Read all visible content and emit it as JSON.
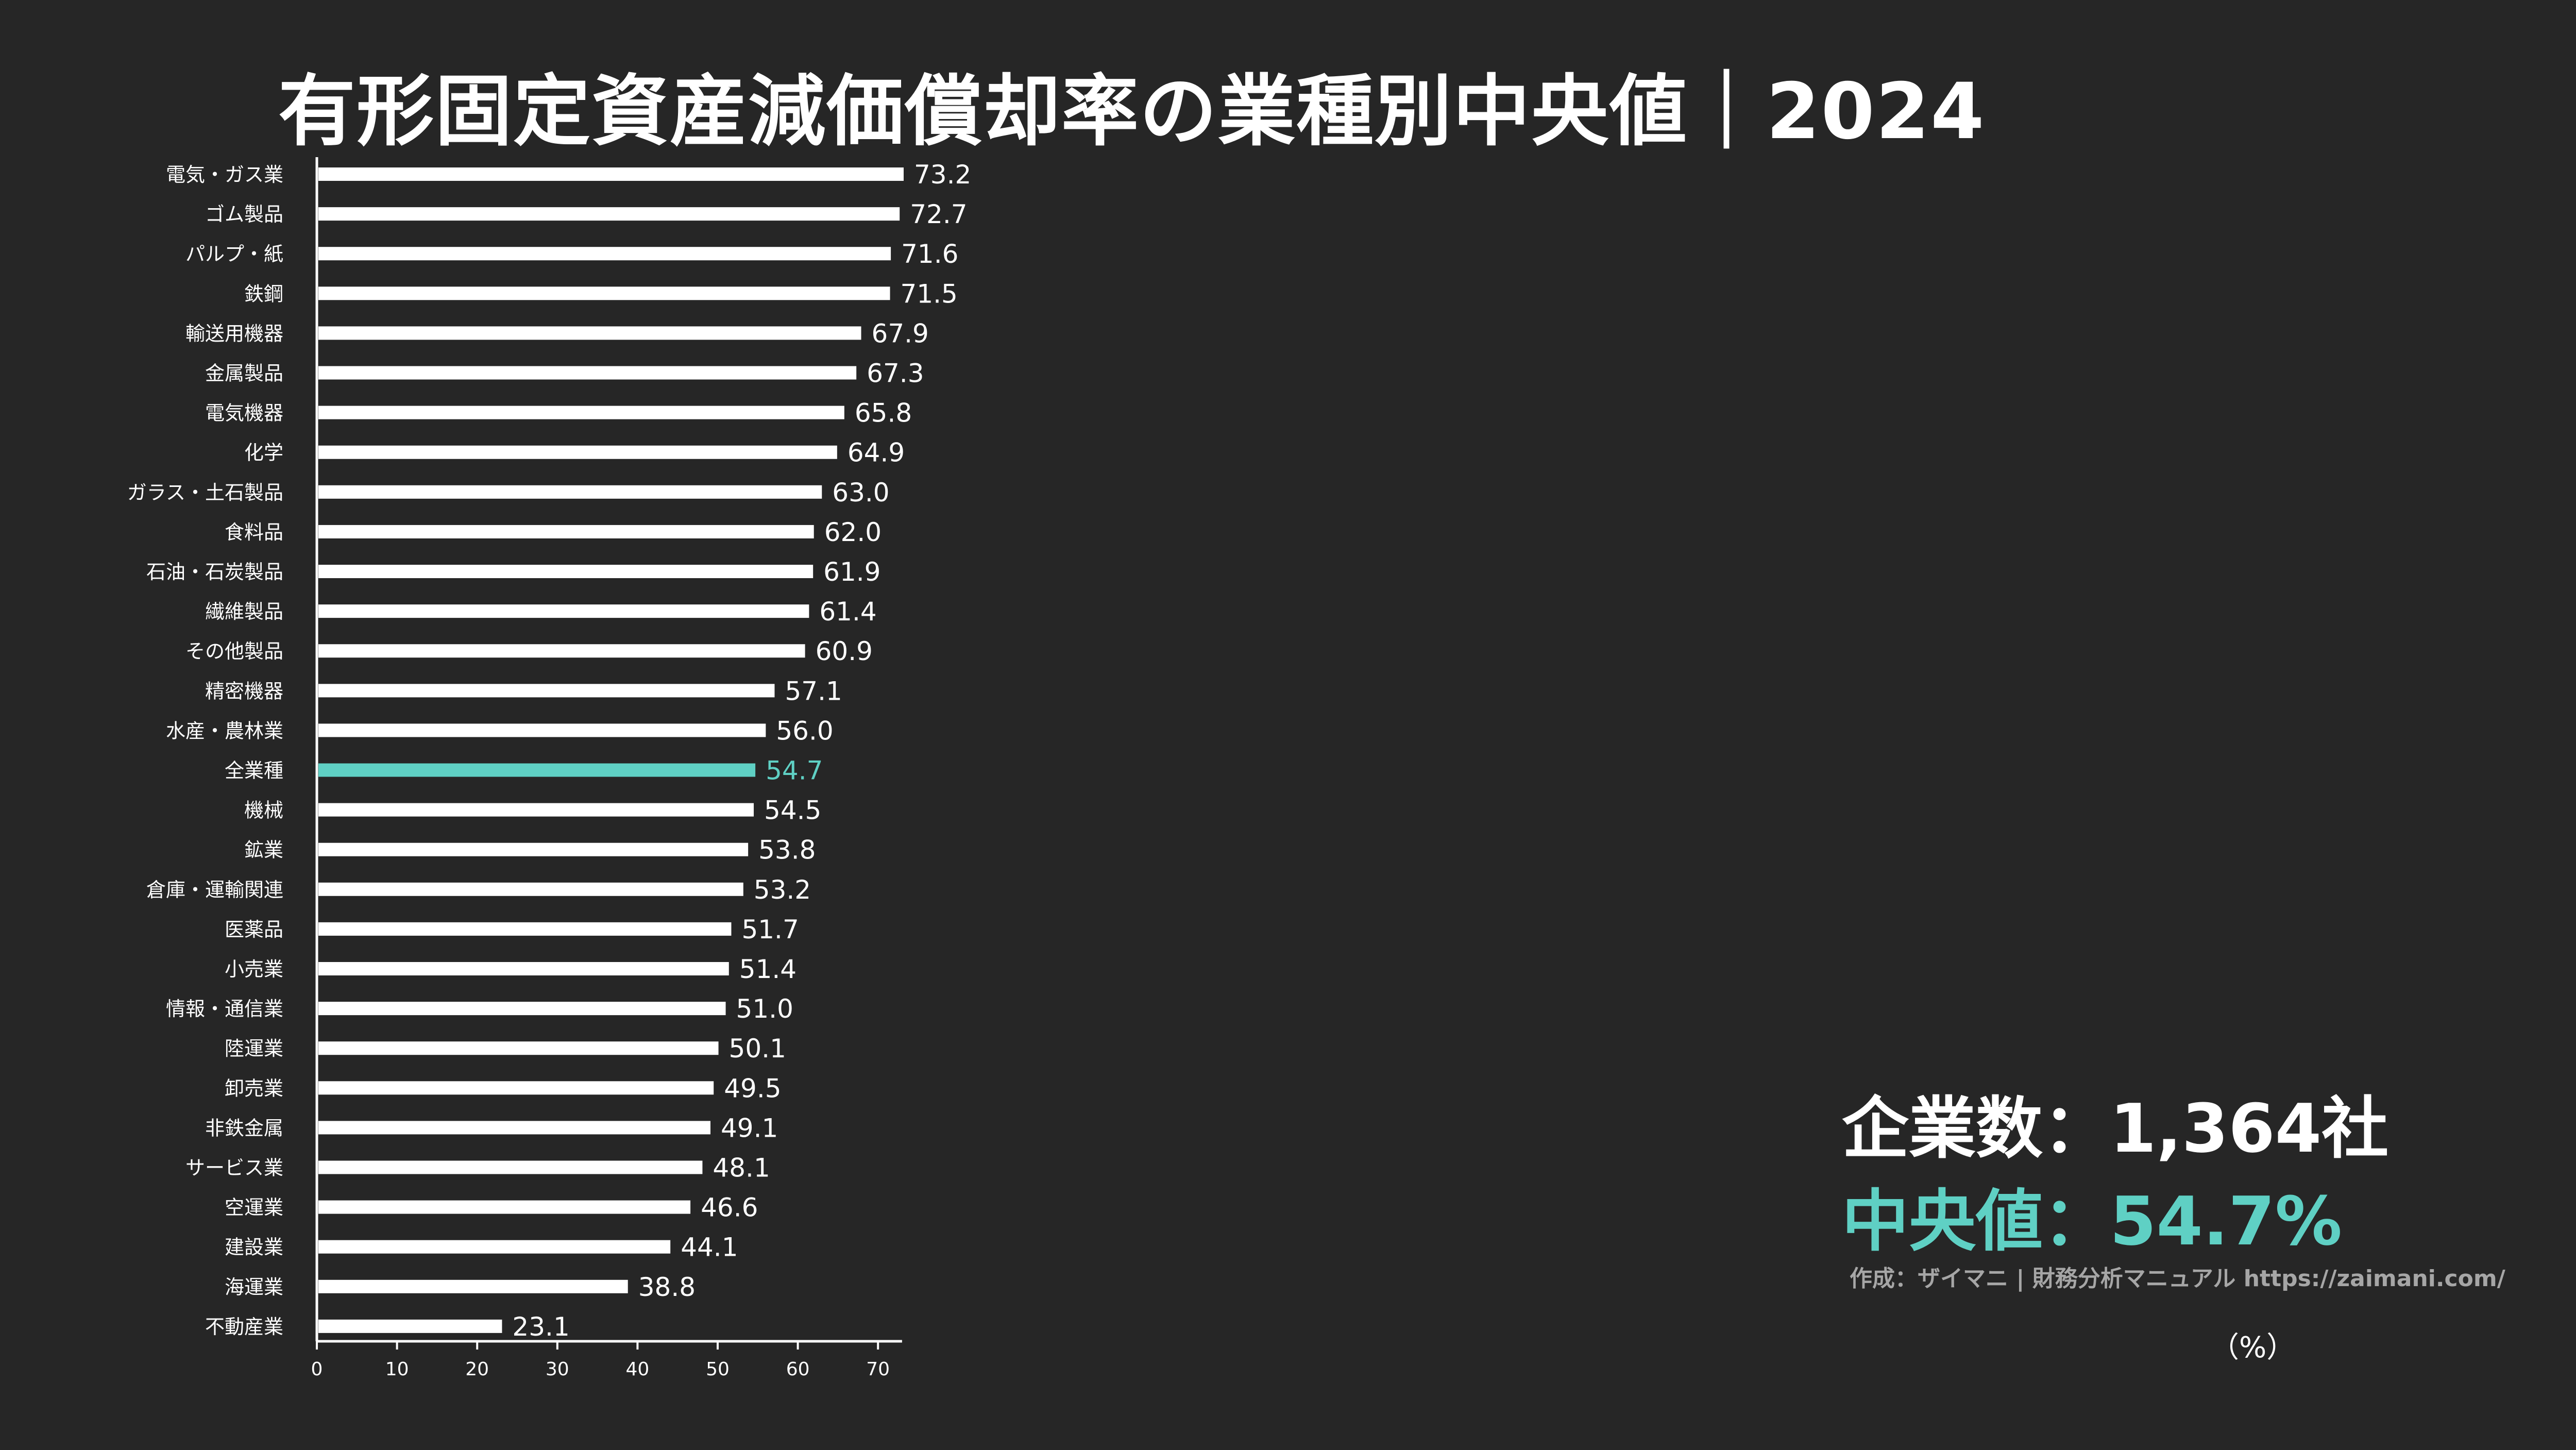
{
  "page": {
    "company_count_text": "企業数：1,364社",
    "median_text": "中央値：54.7%",
    "credit": "作成：ザイマニ | 財務分析マニュアル https://zaimani.com/",
    "unit": "（%）"
  },
  "colors": {
    "background": "#262626",
    "bar": "#ffffff",
    "highlight": "#5fd0c4",
    "axis": "#ffffff",
    "credit": "#a6a6a6"
  },
  "chart_data": {
    "type": "bar",
    "orientation": "horizontal",
    "title": "有形固定資産減価償却率の業種別中央値｜2024",
    "xlabel": "（%）",
    "ylabel": "",
    "xlim": [
      0,
      73
    ],
    "xticks": [
      0,
      10,
      20,
      30,
      40,
      50,
      60,
      70
    ],
    "grid": false,
    "highlight_category": "全業種",
    "categories": [
      "電気・ガス業",
      "ゴム製品",
      "パルプ・紙",
      "鉄鋼",
      "輸送用機器",
      "金属製品",
      "電気機器",
      "化学",
      "ガラス・土石製品",
      "食料品",
      "石油・石炭製品",
      "繊維製品",
      "その他製品",
      "精密機器",
      "水産・農林業",
      "全業種",
      "機械",
      "鉱業",
      "倉庫・運輸関連",
      "医薬品",
      "小売業",
      "情報・通信業",
      "陸運業",
      "卸売業",
      "非鉄金属",
      "サービス業",
      "空運業",
      "建設業",
      "海運業",
      "不動産業"
    ],
    "values": [
      73.2,
      72.7,
      71.6,
      71.5,
      67.9,
      67.3,
      65.8,
      64.9,
      63.0,
      62.0,
      61.9,
      61.4,
      60.9,
      57.1,
      56.0,
      54.7,
      54.5,
      53.8,
      53.2,
      51.7,
      51.4,
      51.0,
      50.1,
      49.5,
      49.1,
      48.1,
      46.6,
      44.1,
      38.8,
      23.1
    ]
  }
}
